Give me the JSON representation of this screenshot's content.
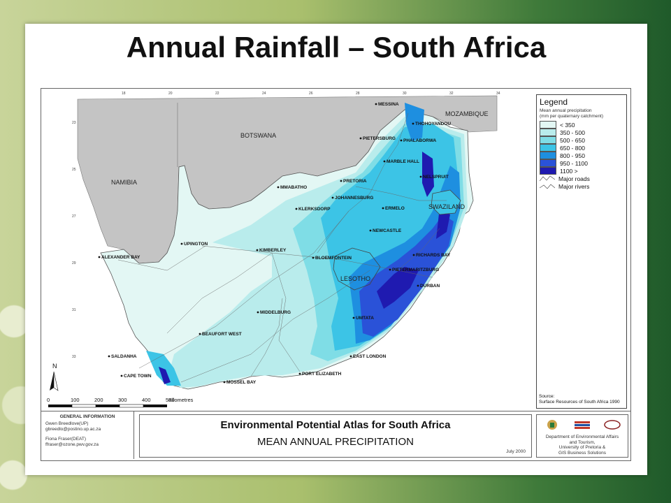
{
  "slide": {
    "title": "Annual Rainfall – South Africa"
  },
  "legend": {
    "title": "Legend",
    "subtitle_1": "Mean annual precipitation",
    "subtitle_2": "(mm per quaternary catchment)",
    "classes": [
      {
        "label": "< 350",
        "color": "#e3f7f4"
      },
      {
        "label": "350 - 500",
        "color": "#b9ecec"
      },
      {
        "label": "500 - 650",
        "color": "#7fdde6"
      },
      {
        "label": "650 - 800",
        "color": "#3cc4e6"
      },
      {
        "label": "800 - 950",
        "color": "#1e8fe0"
      },
      {
        "label": "950 - 1100",
        "color": "#2a52d8"
      },
      {
        "label": "1100 >",
        "color": "#1f1ab0"
      }
    ],
    "roads_label": "Major roads",
    "rivers_label": "Major rivers",
    "source_label": "Source:",
    "source_text": "Surface Resources of South Africa 1990"
  },
  "map": {
    "countries": [
      {
        "name": "BOTSWANA"
      },
      {
        "name": "NAMIBIA"
      },
      {
        "name": "MOZAMBIQUE"
      },
      {
        "name": "LESOTHO"
      },
      {
        "name": "SWAZILAND"
      }
    ],
    "places": [
      {
        "name": "MESSINA"
      },
      {
        "name": "THOHOYANDOU"
      },
      {
        "name": "PIETERSBURG"
      },
      {
        "name": "PHALABORWA"
      },
      {
        "name": "MARBLE HALL"
      },
      {
        "name": "NELSPRUIT"
      },
      {
        "name": "PRETORIA"
      },
      {
        "name": "JOHANNESBURG"
      },
      {
        "name": "MMABATHO"
      },
      {
        "name": "KLERKSDORP"
      },
      {
        "name": "ERMELO"
      },
      {
        "name": "NEWCASTLE"
      },
      {
        "name": "RICHARDS BAY"
      },
      {
        "name": "PIETERMARITZBURG"
      },
      {
        "name": "DURBAN"
      },
      {
        "name": "UPINGTON"
      },
      {
        "name": "KIMBERLEY"
      },
      {
        "name": "BLOEMFONTEIN"
      },
      {
        "name": "ALEXANDER BAY"
      },
      {
        "name": "MIDDELBURG"
      },
      {
        "name": "BEAUFORT WEST"
      },
      {
        "name": "UMTATA"
      },
      {
        "name": "EAST LONDON"
      },
      {
        "name": "SALDANHA"
      },
      {
        "name": "CAPE TOWN"
      },
      {
        "name": "MOSSEL BAY"
      },
      {
        "name": "PORT ELIZABETH"
      }
    ],
    "lon_ticks": [
      "18",
      "20",
      "22",
      "24",
      "26",
      "28",
      "30",
      "32",
      "34"
    ],
    "lat_ticks": [
      "23",
      "25",
      "27",
      "29",
      "31",
      "33"
    ],
    "north_label": "N",
    "scale_ticks": [
      "0",
      "100",
      "200",
      "300",
      "400",
      "500"
    ],
    "scale_unit": "Kilometres"
  },
  "footer": {
    "general_info_title": "GENERAL INFORMATION",
    "contact_1_name": "Gwen Breedlove(UP)",
    "contact_1_email": "gbreedlo@postino.up.ac.za",
    "contact_2_name": "Fiona Fraser(DEAT)",
    "contact_2_email": "ffraser@ozone.pwv.gov.za",
    "atlas_title": "Environmental Potential Atlas for South Africa",
    "atlas_subtitle": "MEAN ANNUAL PRECIPITATION",
    "date": "July 2000",
    "dept_lines": [
      "Department of Environmental Affairs",
      "and Tourism,",
      "University of Pretoria &",
      "GIS Business Solutions"
    ],
    "colors": {
      "shadow_gray": "#c4c4c4"
    }
  }
}
